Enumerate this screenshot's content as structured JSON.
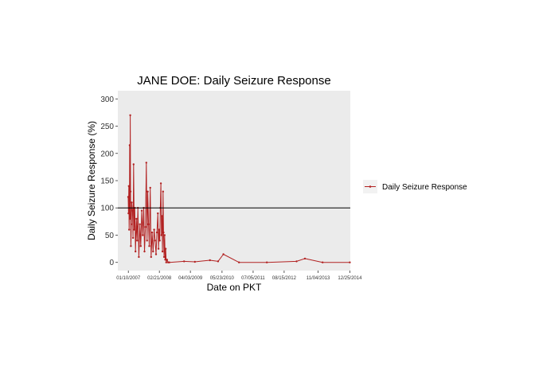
{
  "chart_data": {
    "type": "line",
    "title": "JANE DOE: Daily Seizure Response",
    "xlabel": "Date on PKT",
    "ylabel": "Daily Seizure Response (%)",
    "ylim": [
      -15,
      315
    ],
    "yticks": [
      0,
      50,
      100,
      150,
      200,
      250,
      300
    ],
    "xlim": [
      "2006-08-25",
      "2014-12-31"
    ],
    "xticks": [
      "2007-01-10",
      "2008-02-21",
      "2009-04-03",
      "2010-05-23",
      "2011-07-05",
      "2012-08-15",
      "2013-11-04",
      "2014-12-25"
    ],
    "xtick_labels": [
      "01/10/2007",
      "02/21/2008",
      "04/03/2009",
      "05/23/2010",
      "07/05/2011",
      "08/15/2012",
      "11/04/2013",
      "12/25/2014"
    ],
    "reference_line": {
      "y": 100,
      "color": "#000000"
    },
    "grid": false,
    "panel_background": "#ebebeb",
    "legend_position": "right",
    "series": [
      {
        "name": "Daily Seizure Response",
        "color": "#b22222",
        "points": [
          [
            "2007-01-08",
            120
          ],
          [
            "2007-01-12",
            90
          ],
          [
            "2007-01-16",
            140
          ],
          [
            "2007-01-20",
            60
          ],
          [
            "2007-01-24",
            100
          ],
          [
            "2007-01-28",
            215
          ],
          [
            "2007-02-01",
            80
          ],
          [
            "2007-02-04",
            270
          ],
          [
            "2007-02-08",
            130
          ],
          [
            "2007-02-12",
            30
          ],
          [
            "2007-02-18",
            70
          ],
          [
            "2007-02-24",
            110
          ],
          [
            "2007-03-05",
            95
          ],
          [
            "2007-03-12",
            45
          ],
          [
            "2007-03-20",
            180
          ],
          [
            "2007-03-28",
            60
          ],
          [
            "2007-04-05",
            100
          ],
          [
            "2007-04-14",
            20
          ],
          [
            "2007-04-25",
            80
          ],
          [
            "2007-05-05",
            40
          ],
          [
            "2007-05-15",
            100
          ],
          [
            "2007-05-28",
            10
          ],
          [
            "2007-06-10",
            70
          ],
          [
            "2007-06-22",
            30
          ],
          [
            "2007-07-05",
            95
          ],
          [
            "2007-07-18",
            50
          ],
          [
            "2007-07-30",
            100
          ],
          [
            "2007-08-10",
            20
          ],
          [
            "2007-08-22",
            65
          ],
          [
            "2007-09-03",
            183
          ],
          [
            "2007-09-12",
            40
          ],
          [
            "2007-09-22",
            130
          ],
          [
            "2007-10-02",
            70
          ],
          [
            "2007-10-12",
            30
          ],
          [
            "2007-10-24",
            137
          ],
          [
            "2007-11-05",
            10
          ],
          [
            "2007-11-18",
            55
          ],
          [
            "2007-12-01",
            20
          ],
          [
            "2007-12-14",
            60
          ],
          [
            "2007-12-27",
            40
          ],
          [
            "2008-01-08",
            15
          ],
          [
            "2008-01-20",
            55
          ],
          [
            "2008-02-01",
            90
          ],
          [
            "2008-02-10",
            25
          ],
          [
            "2008-02-18",
            60
          ],
          [
            "2008-02-26",
            40
          ],
          [
            "2008-03-05",
            100
          ],
          [
            "2008-03-12",
            145
          ],
          [
            "2008-03-19",
            50
          ],
          [
            "2008-03-26",
            85
          ],
          [
            "2008-04-02",
            20
          ],
          [
            "2008-04-09",
            130
          ],
          [
            "2008-04-16",
            55
          ],
          [
            "2008-04-23",
            10
          ],
          [
            "2008-04-30",
            50
          ],
          [
            "2008-05-07",
            5
          ],
          [
            "2008-05-14",
            25
          ],
          [
            "2008-05-21",
            0
          ],
          [
            "2008-06-01",
            5
          ],
          [
            "2008-06-15",
            0
          ],
          [
            "2008-07-01",
            0
          ],
          [
            "2009-01-10",
            2
          ],
          [
            "2009-06-01",
            1
          ],
          [
            "2009-12-15",
            4
          ],
          [
            "2010-04-01",
            2
          ],
          [
            "2010-06-10",
            15
          ],
          [
            "2011-01-01",
            0
          ],
          [
            "2012-01-01",
            0
          ],
          [
            "2013-01-25",
            2
          ],
          [
            "2013-05-15",
            7
          ],
          [
            "2014-01-01",
            0
          ],
          [
            "2014-12-25",
            0
          ]
        ]
      }
    ]
  }
}
